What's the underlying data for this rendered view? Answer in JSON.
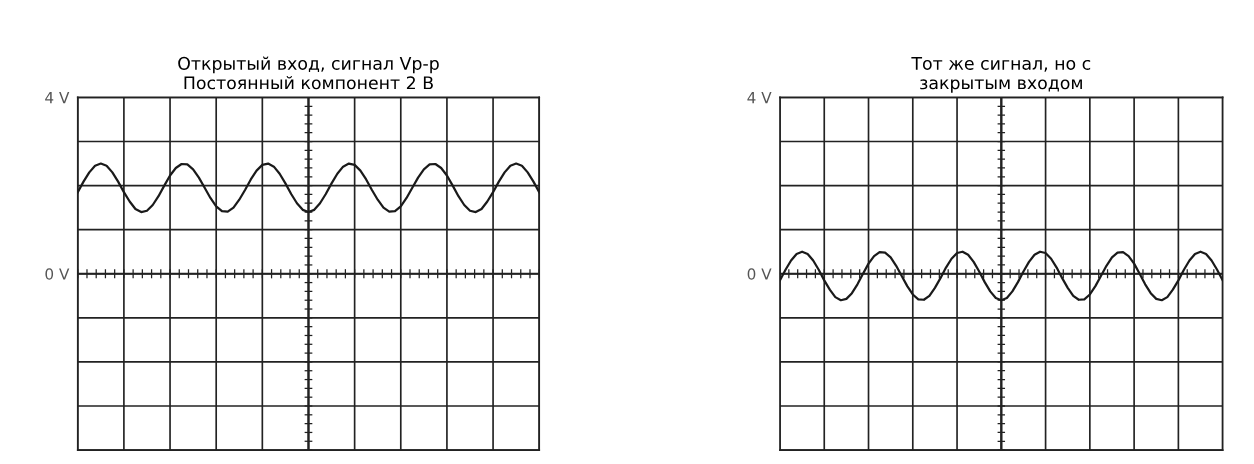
{
  "chart_data": [
    {
      "type": "line",
      "title": "Открытый вход, сигнал Vp-p\nПостоянный компонент 2 В",
      "categories": [
        null,
        null,
        null,
        null,
        null,
        null,
        null,
        null,
        null,
        null,
        null,
        null,
        null,
        null,
        null,
        null,
        null,
        null,
        null,
        null,
        null,
        null,
        null,
        null,
        null,
        null,
        null,
        null,
        null,
        null,
        null,
        null,
        null,
        null,
        null,
        null,
        null,
        null,
        null,
        null,
        null,
        null,
        null,
        null,
        null,
        null,
        null,
        null,
        null,
        null,
        null,
        null,
        null,
        null,
        null,
        null,
        null,
        null,
        null,
        null,
        null,
        null,
        null,
        null,
        null,
        null,
        null,
        null,
        null,
        null,
        null,
        null,
        null,
        null,
        null,
        null,
        null,
        null,
        null,
        null,
        null
      ],
      "series": [
        {
          "color": "#1a1a1a",
          "values": [
            1.85,
            2.09,
            2.3,
            2.45,
            2.5,
            2.45,
            2.3,
            2.09,
            1.85,
            1.64,
            1.47,
            1.4,
            1.43,
            1.56,
            1.76,
            2.0,
            2.23,
            2.4,
            2.49,
            2.48,
            2.37,
            2.18,
            1.95,
            1.72,
            1.53,
            1.42,
            1.41,
            1.5,
            1.68,
            1.9,
            2.14,
            2.34,
            2.47,
            2.5,
            2.43,
            2.27,
            2.05,
            1.81,
            1.6,
            1.45,
            1.4,
            1.45,
            1.6,
            1.81,
            2.05,
            2.27,
            2.43,
            2.5,
            2.47,
            2.34,
            2.14,
            1.9,
            1.68,
            1.5,
            1.41,
            1.42,
            1.53,
            1.72,
            1.95,
            2.18,
            2.37,
            2.48,
            2.49,
            2.4,
            2.23,
            2.0,
            1.76,
            1.56,
            1.43,
            1.4,
            1.47,
            1.64,
            1.85,
            2.09,
            2.3,
            2.45,
            2.5,
            2.45,
            2.3,
            2.09,
            1.85
          ]
        }
      ],
      "ylim": [
        -4,
        4
      ],
      "yticks": [
        {
          "value": -4,
          "label": null
        },
        {
          "value": -3,
          "label": null
        },
        {
          "value": -2,
          "label": null
        },
        {
          "value": -1,
          "label": null
        },
        {
          "value": 0,
          "label": "0 V"
        },
        {
          "value": 1,
          "label": null
        },
        {
          "value": 2,
          "label": null
        },
        {
          "value": 3,
          "label": null
        },
        {
          "value": 4,
          "label": "4 V"
        }
      ],
      "grid": true,
      "marker": "none",
      "line_style": "solid"
    },
    {
      "type": "line",
      "title": "Тот же сигнал, но с\nзакрытым входом",
      "categories": [
        null,
        null,
        null,
        null,
        null,
        null,
        null,
        null,
        null,
        null,
        null,
        null,
        null,
        null,
        null,
        null,
        null,
        null,
        null,
        null,
        null,
        null,
        null,
        null,
        null,
        null,
        null,
        null,
        null,
        null,
        null,
        null,
        null,
        null,
        null,
        null,
        null,
        null,
        null,
        null,
        null,
        null,
        null,
        null,
        null,
        null,
        null,
        null,
        null,
        null,
        null,
        null,
        null,
        null,
        null,
        null,
        null,
        null,
        null,
        null,
        null,
        null,
        null,
        null,
        null,
        null,
        null,
        null,
        null,
        null,
        null,
        null,
        null,
        null,
        null,
        null,
        null,
        null,
        null,
        null,
        null
      ],
      "series": [
        {
          "color": "#1a1a1a",
          "values": [
            -0.15,
            0.09,
            0.3,
            0.45,
            0.5,
            0.45,
            0.3,
            0.09,
            -0.15,
            -0.36,
            -0.53,
            -0.6,
            -0.57,
            -0.44,
            -0.24,
            0.0,
            0.23,
            0.4,
            0.49,
            0.48,
            0.37,
            0.18,
            -0.05,
            -0.28,
            -0.47,
            -0.58,
            -0.59,
            -0.5,
            -0.32,
            -0.1,
            0.14,
            0.34,
            0.47,
            0.5,
            0.43,
            0.27,
            0.05,
            -0.19,
            -0.4,
            -0.55,
            -0.6,
            -0.55,
            -0.4,
            -0.19,
            0.05,
            0.27,
            0.43,
            0.5,
            0.47,
            0.34,
            0.14,
            -0.1,
            -0.32,
            -0.5,
            -0.59,
            -0.58,
            -0.47,
            -0.28,
            -0.05,
            0.18,
            0.37,
            0.48,
            0.49,
            0.4,
            0.23,
            0.0,
            -0.24,
            -0.44,
            -0.57,
            -0.6,
            -0.53,
            -0.36,
            -0.15,
            0.09,
            0.3,
            0.45,
            0.5,
            0.45,
            0.3,
            0.09,
            -0.15
          ]
        }
      ],
      "ylim": [
        -4,
        4
      ],
      "yticks": [
        {
          "value": -4,
          "label": null
        },
        {
          "value": -3,
          "label": null
        },
        {
          "value": -2,
          "label": null
        },
        {
          "value": -1,
          "label": null
        },
        {
          "value": 0,
          "label": "0 V"
        },
        {
          "value": 1,
          "label": null
        },
        {
          "value": 2,
          "label": null
        },
        {
          "value": 3,
          "label": null
        },
        {
          "value": 4,
          "label": "4 V"
        }
      ],
      "grid": true,
      "marker": "none",
      "line_style": "solid"
    }
  ]
}
